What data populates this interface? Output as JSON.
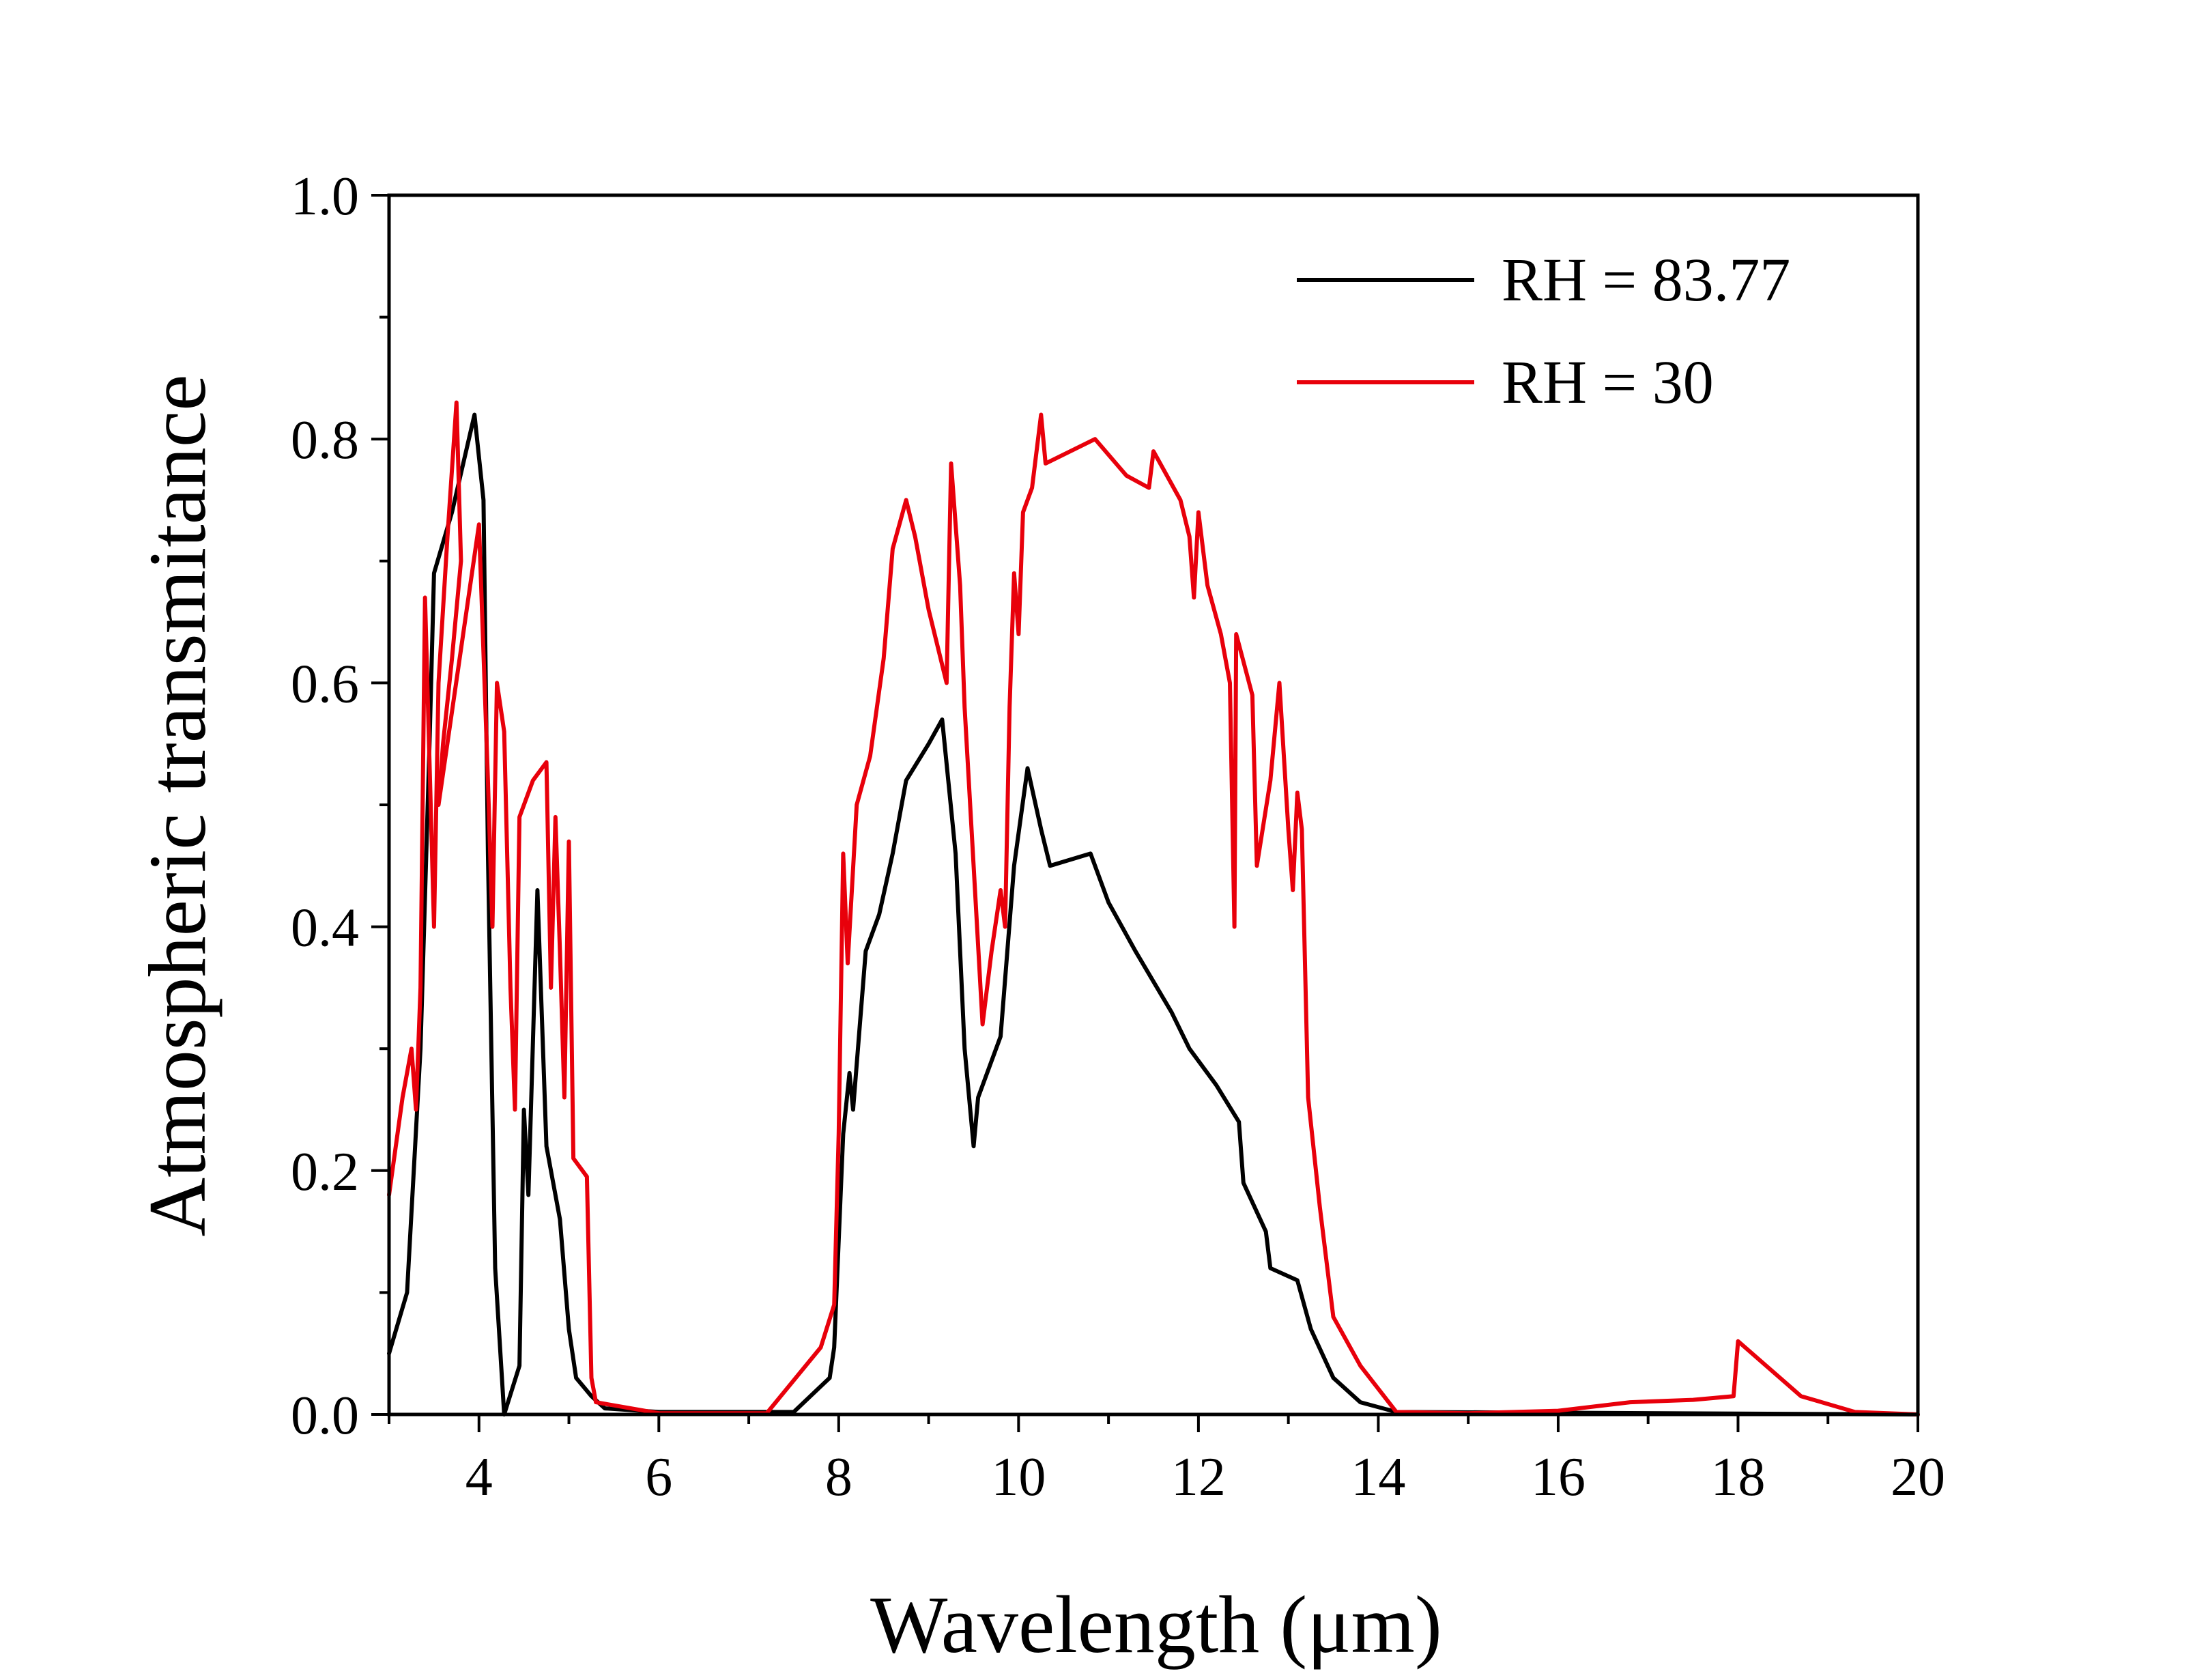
{
  "chart_data": {
    "type": "line",
    "title": "",
    "xlabel": "Wavelength (μm)",
    "ylabel": "Atmospheric transmitance",
    "xlim": [
      3,
      20
    ],
    "ylim": [
      0,
      1.0
    ],
    "x_major_ticks": [
      4,
      6,
      8,
      10,
      12,
      14,
      16,
      18,
      20
    ],
    "x_tick_labels": [
      "4",
      "6",
      "8",
      "10",
      "12",
      "14",
      "16",
      "18",
      "20"
    ],
    "y_major_ticks": [
      0,
      0.2,
      0.4,
      0.6,
      0.8,
      1.0
    ],
    "y_tick_labels": [
      "0.0",
      "0.2",
      "0.4",
      "0.6",
      "0.8",
      "1.0"
    ],
    "grid": false,
    "legend_position": "top-right",
    "series": [
      {
        "name": "RH = 83.77",
        "color": "#000000",
        "points": [
          [
            3.0,
            0.05
          ],
          [
            3.2,
            0.1
          ],
          [
            3.35,
            0.3
          ],
          [
            3.45,
            0.55
          ],
          [
            3.5,
            0.69
          ],
          [
            3.7,
            0.74
          ],
          [
            3.95,
            0.82
          ],
          [
            4.05,
            0.75
          ],
          [
            4.1,
            0.46
          ],
          [
            4.18,
            0.12
          ],
          [
            4.28,
            0.0
          ],
          [
            4.45,
            0.04
          ],
          [
            4.5,
            0.25
          ],
          [
            4.55,
            0.18
          ],
          [
            4.65,
            0.43
          ],
          [
            4.75,
            0.22
          ],
          [
            4.9,
            0.16
          ],
          [
            5.0,
            0.07
          ],
          [
            5.08,
            0.03
          ],
          [
            5.25,
            0.015
          ],
          [
            5.4,
            0.005
          ],
          [
            6.0,
            0.002
          ],
          [
            7.5,
            0.002
          ],
          [
            7.9,
            0.03
          ],
          [
            7.95,
            0.055
          ],
          [
            8.05,
            0.23
          ],
          [
            8.12,
            0.28
          ],
          [
            8.16,
            0.25
          ],
          [
            8.3,
            0.38
          ],
          [
            8.45,
            0.41
          ],
          [
            8.6,
            0.46
          ],
          [
            8.75,
            0.52
          ],
          [
            9.0,
            0.55
          ],
          [
            9.15,
            0.57
          ],
          [
            9.3,
            0.46
          ],
          [
            9.4,
            0.3
          ],
          [
            9.5,
            0.22
          ],
          [
            9.55,
            0.26
          ],
          [
            9.8,
            0.31
          ],
          [
            9.95,
            0.45
          ],
          [
            10.1,
            0.53
          ],
          [
            10.25,
            0.48
          ],
          [
            10.35,
            0.45
          ],
          [
            10.8,
            0.46
          ],
          [
            11.0,
            0.42
          ],
          [
            11.3,
            0.38
          ],
          [
            11.7,
            0.33
          ],
          [
            11.9,
            0.3
          ],
          [
            12.2,
            0.27
          ],
          [
            12.45,
            0.24
          ],
          [
            12.5,
            0.19
          ],
          [
            12.75,
            0.15
          ],
          [
            12.8,
            0.12
          ],
          [
            13.1,
            0.11
          ],
          [
            13.25,
            0.07
          ],
          [
            13.5,
            0.03
          ],
          [
            13.8,
            0.01
          ],
          [
            14.2,
            0.002
          ],
          [
            20.0,
            0.0
          ]
        ]
      },
      {
        "name": "RH = 30",
        "color": "#e8000b",
        "points": [
          [
            3.0,
            0.18
          ],
          [
            3.15,
            0.26
          ],
          [
            3.25,
            0.3
          ],
          [
            3.3,
            0.25
          ],
          [
            3.35,
            0.35
          ],
          [
            3.4,
            0.67
          ],
          [
            3.5,
            0.4
          ],
          [
            3.55,
            0.6
          ],
          [
            3.65,
            0.72
          ],
          [
            3.75,
            0.83
          ],
          [
            3.8,
            0.7
          ],
          [
            3.7,
            0.62
          ],
          [
            3.6,
            0.55
          ],
          [
            3.55,
            0.5
          ],
          [
            4.0,
            0.73
          ],
          [
            4.1,
            0.52
          ],
          [
            4.15,
            0.4
          ],
          [
            4.2,
            0.6
          ],
          [
            4.28,
            0.56
          ],
          [
            4.35,
            0.35
          ],
          [
            4.4,
            0.25
          ],
          [
            4.45,
            0.49
          ],
          [
            4.6,
            0.52
          ],
          [
            4.75,
            0.535
          ],
          [
            4.8,
            0.35
          ],
          [
            4.85,
            0.49
          ],
          [
            4.9,
            0.38
          ],
          [
            4.95,
            0.26
          ],
          [
            5.0,
            0.47
          ],
          [
            5.05,
            0.21
          ],
          [
            5.2,
            0.195
          ],
          [
            5.25,
            0.03
          ],
          [
            5.3,
            0.01
          ],
          [
            6.0,
            0.001
          ],
          [
            7.0,
            0.001
          ],
          [
            7.2,
            0.001
          ],
          [
            7.8,
            0.055
          ],
          [
            7.95,
            0.09
          ],
          [
            8.0,
            0.23
          ],
          [
            8.05,
            0.46
          ],
          [
            8.1,
            0.37
          ],
          [
            8.2,
            0.5
          ],
          [
            8.35,
            0.54
          ],
          [
            8.5,
            0.62
          ],
          [
            8.6,
            0.71
          ],
          [
            8.75,
            0.75
          ],
          [
            8.85,
            0.72
          ],
          [
            9.0,
            0.66
          ],
          [
            9.2,
            0.6
          ],
          [
            9.25,
            0.78
          ],
          [
            9.35,
            0.68
          ],
          [
            9.4,
            0.58
          ],
          [
            9.5,
            0.45
          ],
          [
            9.6,
            0.32
          ],
          [
            9.65,
            0.35
          ],
          [
            9.7,
            0.38
          ],
          [
            9.8,
            0.43
          ],
          [
            9.85,
            0.4
          ],
          [
            9.9,
            0.58
          ],
          [
            9.95,
            0.69
          ],
          [
            10.0,
            0.64
          ],
          [
            10.05,
            0.74
          ],
          [
            10.15,
            0.76
          ],
          [
            10.25,
            0.82
          ],
          [
            10.3,
            0.78
          ],
          [
            10.85,
            0.8
          ],
          [
            11.2,
            0.77
          ],
          [
            11.45,
            0.76
          ],
          [
            11.5,
            0.79
          ],
          [
            11.8,
            0.75
          ],
          [
            11.9,
            0.72
          ],
          [
            11.95,
            0.67
          ],
          [
            12.0,
            0.74
          ],
          [
            12.1,
            0.68
          ],
          [
            12.25,
            0.64
          ],
          [
            12.35,
            0.6
          ],
          [
            12.4,
            0.4
          ],
          [
            12.42,
            0.64
          ],
          [
            12.6,
            0.59
          ],
          [
            12.65,
            0.45
          ],
          [
            12.8,
            0.52
          ],
          [
            12.9,
            0.6
          ],
          [
            13.0,
            0.48
          ],
          [
            13.05,
            0.43
          ],
          [
            13.1,
            0.51
          ],
          [
            13.15,
            0.48
          ],
          [
            13.22,
            0.26
          ],
          [
            13.35,
            0.17
          ],
          [
            13.5,
            0.08
          ],
          [
            13.8,
            0.04
          ],
          [
            14.2,
            0.002
          ],
          [
            15.0,
            0.001
          ],
          [
            16.0,
            0.003
          ],
          [
            16.8,
            0.01
          ],
          [
            17.5,
            0.012
          ],
          [
            17.95,
            0.015
          ],
          [
            18.0,
            0.06
          ],
          [
            18.7,
            0.015
          ],
          [
            19.3,
            0.002
          ],
          [
            20.0,
            0.0
          ]
        ]
      }
    ]
  }
}
